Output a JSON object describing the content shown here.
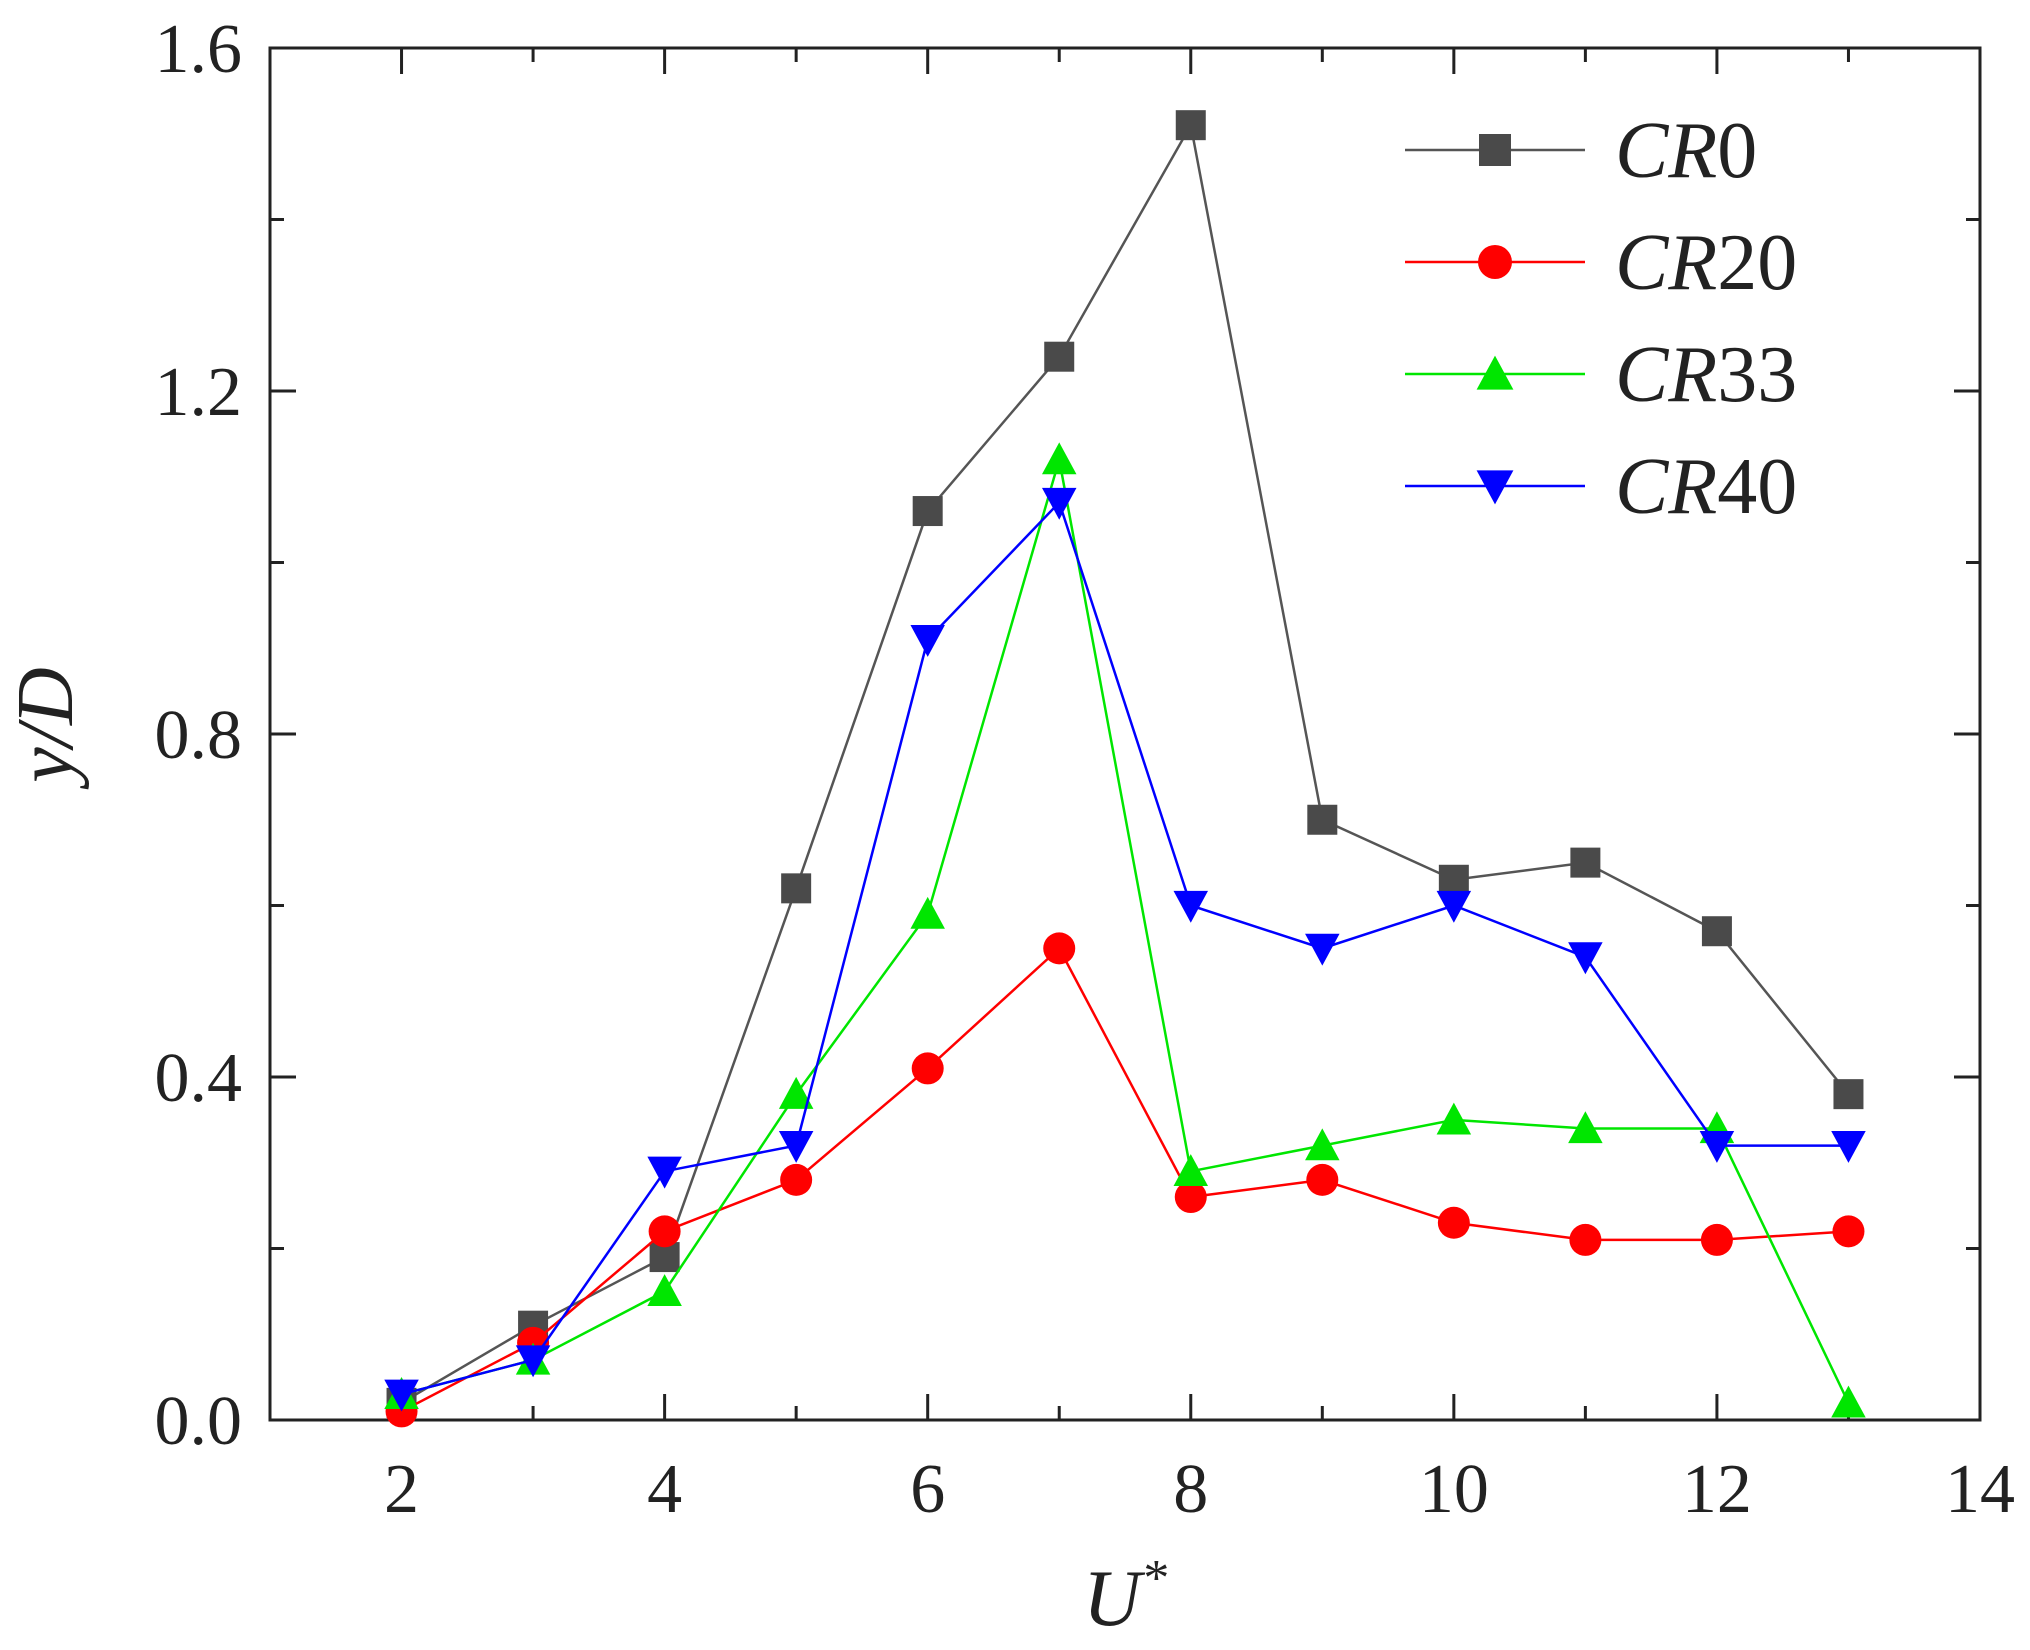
{
  "chart_data": {
    "type": "line",
    "title": "",
    "xlabel": "U",
    "xlabel_superscript": "*",
    "ylabel": "y/D",
    "xlim": [
      1,
      14
    ],
    "ylim": [
      0,
      1.6
    ],
    "xticks": [
      2,
      4,
      6,
      8,
      10,
      12,
      14
    ],
    "yticks": [
      0.0,
      0.4,
      0.8,
      1.2,
      1.6
    ],
    "ytick_labels": [
      "0.0",
      "0.4",
      "0.8",
      "1.2",
      "1.6"
    ],
    "xtick_labels": [
      "2",
      "4",
      "6",
      "8",
      "10",
      "12",
      "14"
    ],
    "legend_position": "top-right",
    "x": [
      2,
      3,
      4,
      5,
      6,
      7,
      8,
      9,
      10,
      11,
      12,
      13
    ],
    "series": [
      {
        "name": "CR0",
        "name_italic": "CR",
        "name_number": "0",
        "color": "#4a4a4a",
        "line_color": "#555555",
        "marker": "square",
        "values": [
          0.02,
          0.11,
          0.19,
          0.62,
          1.06,
          1.24,
          1.51,
          0.7,
          0.63,
          0.65,
          0.57,
          0.38
        ]
      },
      {
        "name": "CR20",
        "name_italic": "CR",
        "name_number": "20",
        "color": "#ff0000",
        "line_color": "#ff0000",
        "marker": "circle",
        "values": [
          0.01,
          0.09,
          0.22,
          0.28,
          0.41,
          0.55,
          0.26,
          0.28,
          0.23,
          0.21,
          0.21,
          0.22
        ]
      },
      {
        "name": "CR33",
        "name_italic": "CR",
        "name_number": "33",
        "color": "#00e600",
        "line_color": "#00e600",
        "marker": "triangle-up",
        "values": [
          0.03,
          0.07,
          0.15,
          0.38,
          0.59,
          1.12,
          0.29,
          0.32,
          0.35,
          0.34,
          0.34,
          0.02
        ]
      },
      {
        "name": "CR40",
        "name_italic": "CR",
        "name_number": "40",
        "color": "#0000ff",
        "line_color": "#0000ff",
        "marker": "triangle-down",
        "values": [
          0.03,
          0.07,
          0.29,
          0.32,
          0.91,
          1.07,
          0.6,
          0.55,
          0.6,
          0.54,
          0.32,
          0.32
        ]
      }
    ]
  }
}
